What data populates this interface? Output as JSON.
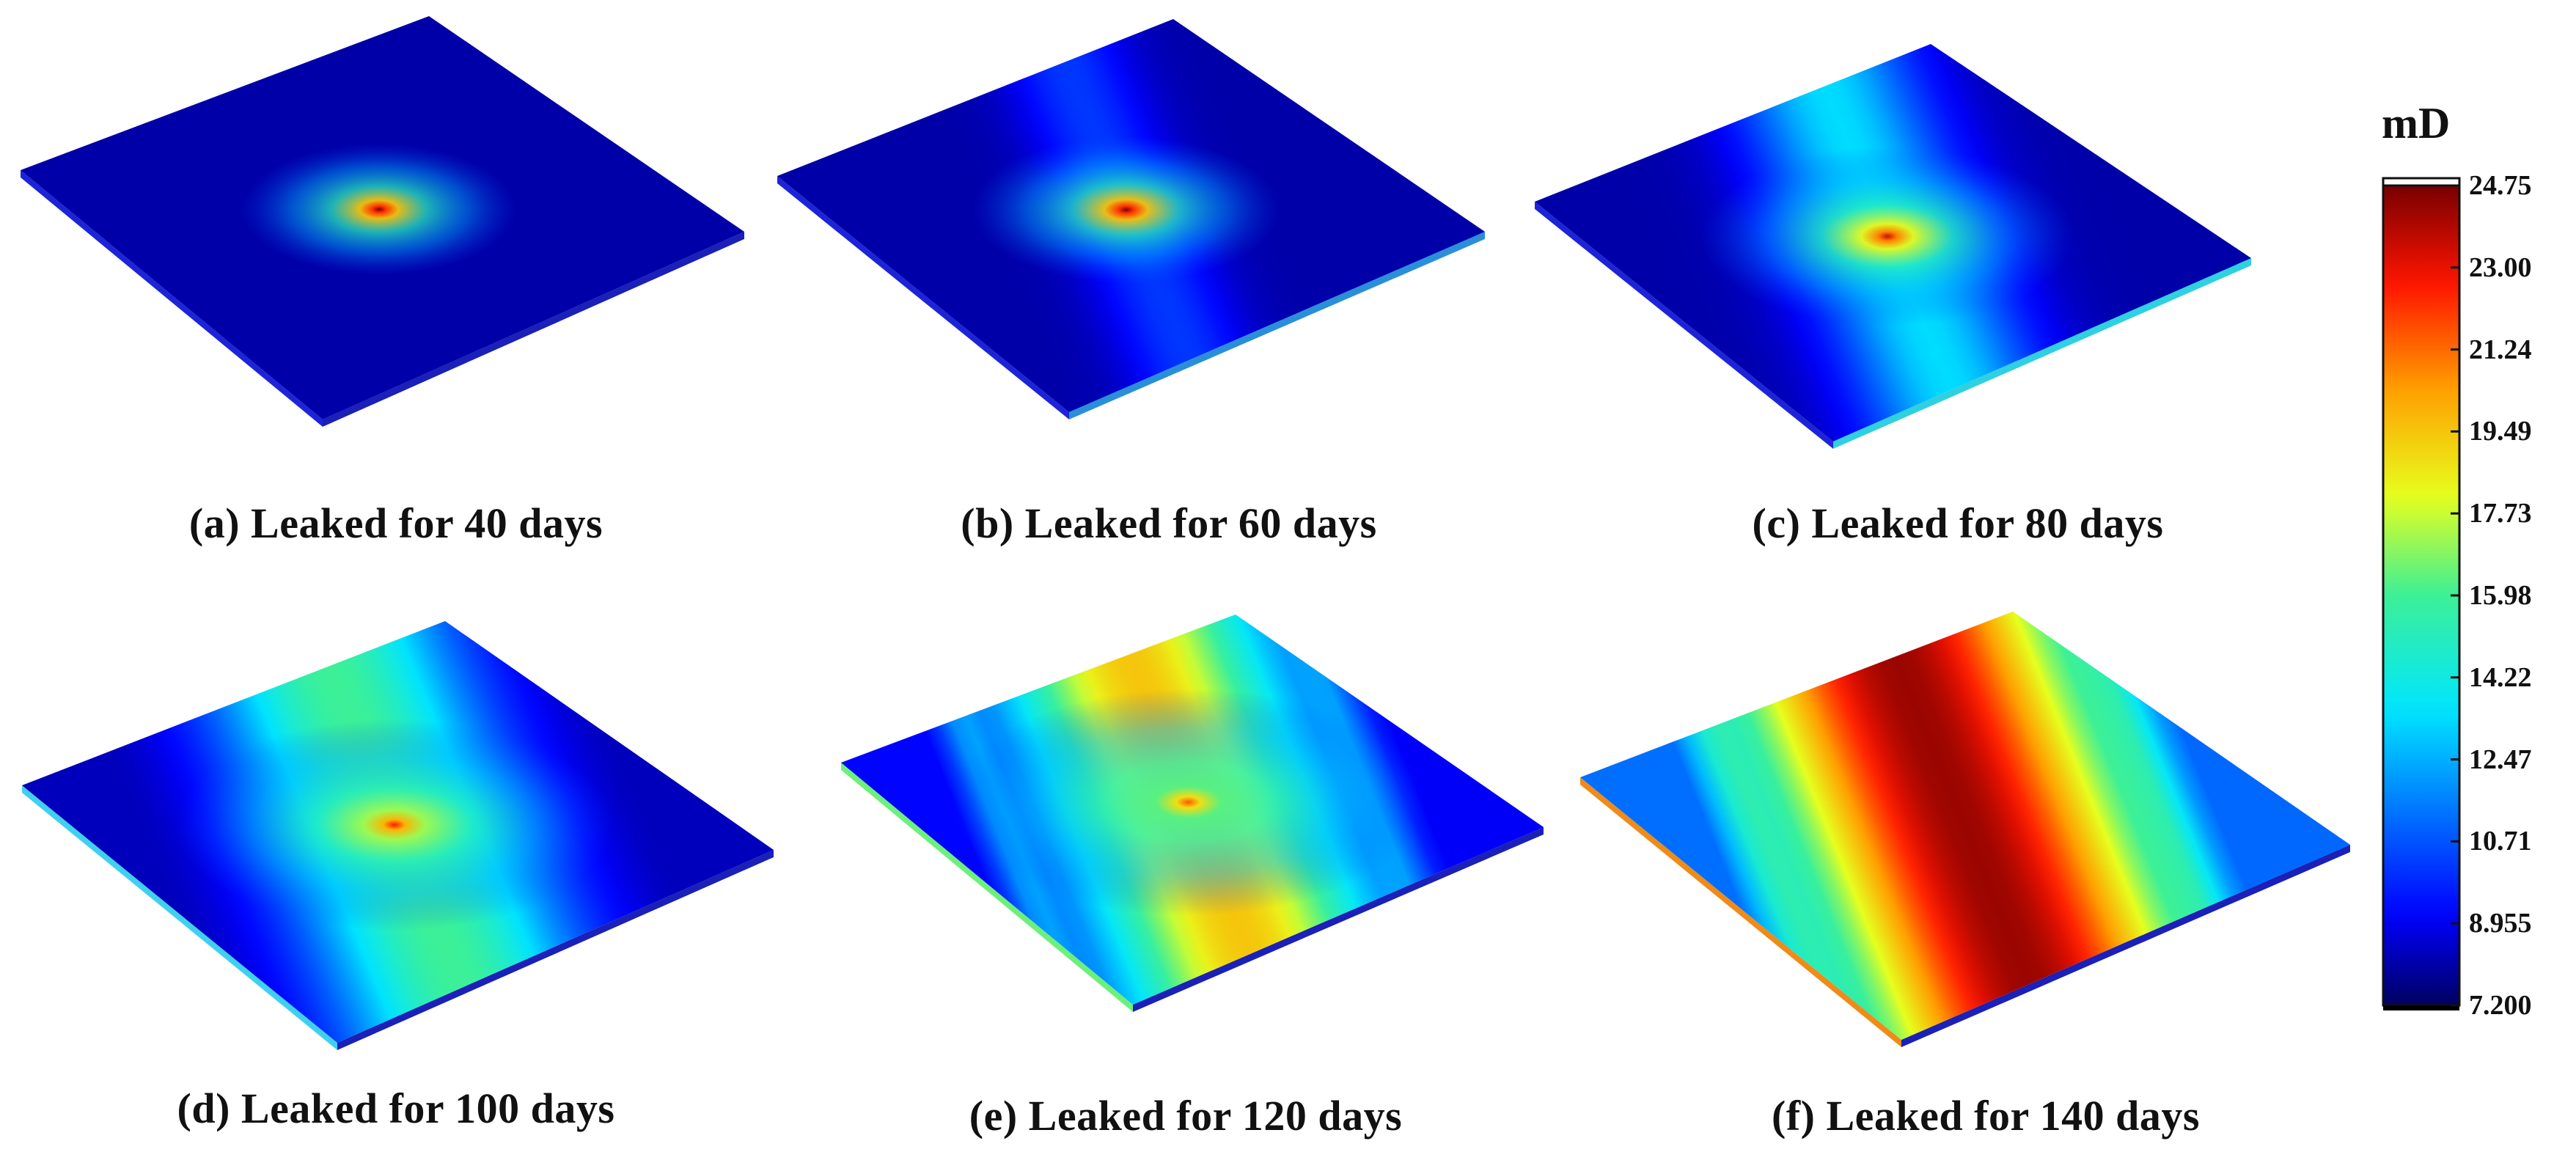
{
  "colorbar": {
    "unit": "mD",
    "ticks": [
      "24.75",
      "23.00",
      "21.24",
      "19.49",
      "17.73",
      "15.98",
      "14.22",
      "12.47",
      "10.71",
      "8.955",
      "7.200"
    ],
    "min": 7.2,
    "max": 24.75,
    "colormap": "jet"
  },
  "panels": [
    {
      "caption": "(a) Leaked for 40 days",
      "days": 40,
      "peak": 24.75,
      "spot_radius": 0.1,
      "band_width": 0.0,
      "band_level": 0.0,
      "hot_left_edge": false
    },
    {
      "caption": "(b) Leaked for 60 days",
      "days": 60,
      "peak": 24.75,
      "spot_radius": 0.12,
      "band_width": 0.08,
      "band_level": 0.12,
      "hot_left_edge": false
    },
    {
      "caption": "(c) Leaked for 80 days",
      "days": 80,
      "peak": 23.5,
      "spot_radius": 0.16,
      "band_width": 0.16,
      "band_level": 0.3,
      "hot_left_edge": false
    },
    {
      "caption": "(d) Leaked for 100 days",
      "days": 100,
      "peak": 22.5,
      "spot_radius": 0.2,
      "band_width": 0.24,
      "band_level": 0.45,
      "hot_left_edge": false
    },
    {
      "caption": "(e) Leaked for 120 days",
      "days": 120,
      "peak": 21.5,
      "spot_radius": 0.22,
      "band_width": 0.3,
      "band_level": 0.65,
      "hot_left_edge": true
    },
    {
      "caption": "(f) Leaked for 140 days",
      "days": 140,
      "peak": 23.5,
      "spot_radius": 0.0,
      "band_width": 0.38,
      "band_level": 0.92,
      "hot_left_edge": true
    }
  ]
}
